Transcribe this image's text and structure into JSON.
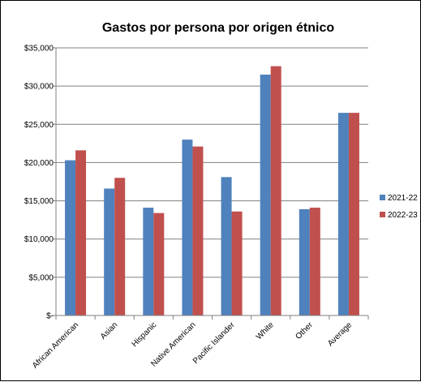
{
  "chart_data": {
    "type": "bar",
    "title": "Gastos por persona por origen étnico",
    "categories": [
      "African American",
      "Asian",
      "Hispanic",
      "Native American",
      "Pacific Islander",
      "White",
      "Other",
      "Average"
    ],
    "series": [
      {
        "name": "2021-22",
        "color": "#4F81BD",
        "values": [
          20300,
          16600,
          14100,
          23000,
          18100,
          31500,
          13900,
          26500
        ]
      },
      {
        "name": "2022-23",
        "color": "#C0504D",
        "values": [
          21600,
          18000,
          13400,
          22100,
          13600,
          32600,
          14100,
          26500
        ]
      }
    ],
    "ylim": [
      0,
      35000
    ],
    "yticks": [
      0,
      5000,
      10000,
      15000,
      20000,
      25000,
      30000,
      35000
    ],
    "ytick_labels": [
      "$-",
      "$5,000",
      "$10,000",
      "$15,000",
      "$20,000",
      "$25,000",
      "$30,000",
      "$35,000"
    ],
    "xlabel": "",
    "ylabel": "",
    "grid": true,
    "legend": "right"
  }
}
